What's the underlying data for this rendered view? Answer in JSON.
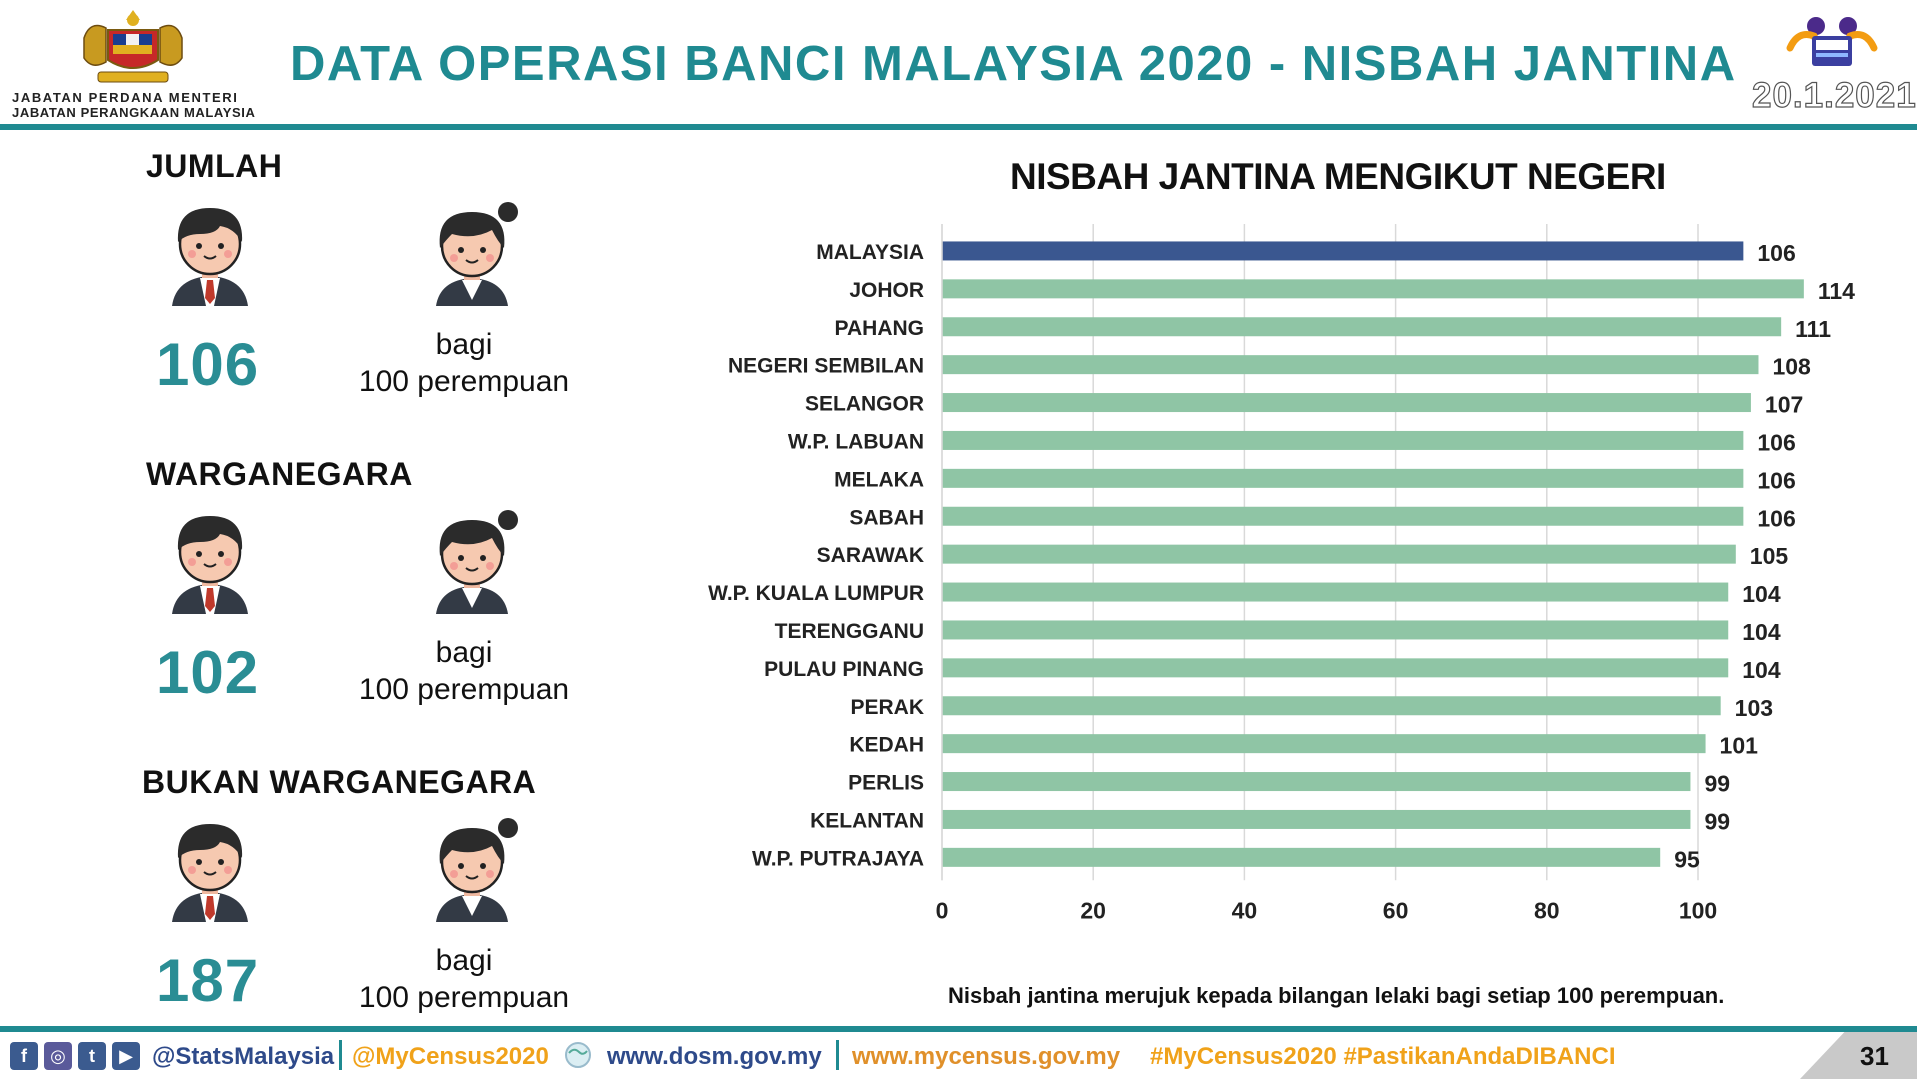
{
  "header": {
    "agency_line1": "JABATAN PERDANA MENTERI",
    "agency_line2": "JABATAN PERANGKAAN MALAYSIA",
    "title": "DATA OPERASI BANCI MALAYSIA 2020 - NISBAH JANTINA",
    "date": "20.1.2021",
    "crest_icon": "malaysia-coat-of-arms-icon",
    "logo_icon": "banci-malaysia-logo-icon"
  },
  "summary": [
    {
      "title": "JUMLAH",
      "value": "106",
      "per_line1": "bagi",
      "per_line2": "100 perempuan"
    },
    {
      "title": "WARGANEGARA",
      "value": "102",
      "per_line1": "bagi",
      "per_line2": "100 perempuan"
    },
    {
      "title": "BUKAN WARGANEGARA",
      "value": "187",
      "per_line1": "bagi",
      "per_line2": "100 perempuan"
    }
  ],
  "colors": {
    "accent": "#1f8a91",
    "value_text": "#2a8d94",
    "bar_highlight": "#3a5790",
    "bar_default": "#8fc5a5"
  },
  "chart_data": {
    "type": "bar",
    "orientation": "horizontal",
    "title": "NISBAH JANTINA MENGIKUT NEGERI",
    "categories": [
      "MALAYSIA",
      "JOHOR",
      "PAHANG",
      "NEGERI SEMBILAN",
      "SELANGOR",
      "W.P. LABUAN",
      "MELAKA",
      "SABAH",
      "SARAWAK",
      "W.P. KUALA LUMPUR",
      "TERENGGANU",
      "PULAU PINANG",
      "PERAK",
      "KEDAH",
      "PERLIS",
      "KELANTAN",
      "W.P. PUTRAJAYA"
    ],
    "values": [
      106,
      114,
      111,
      108,
      107,
      106,
      106,
      106,
      105,
      104,
      104,
      104,
      103,
      101,
      99,
      99,
      95
    ],
    "highlight_index": 0,
    "xlim": [
      0,
      114
    ],
    "xticks": [
      0,
      20,
      40,
      60,
      80,
      100
    ],
    "grid": true,
    "data_labels": true
  },
  "note": "Nisbah jantina merujuk kepada bilangan lelaki bagi setiap 100 perempuan.",
  "footer": {
    "social_icons": [
      "facebook-icon",
      "instagram-icon",
      "twitter-icon",
      "youtube-icon"
    ],
    "handle": "@StatsMalaysia",
    "hashtag1": "@MyCensus2020",
    "site1": "www.dosm.gov.my",
    "site2": "www.mycensus.gov.my",
    "hashtags": "#MyCensus2020 #PastikanAndaDIBANCI",
    "page_number": "31"
  }
}
